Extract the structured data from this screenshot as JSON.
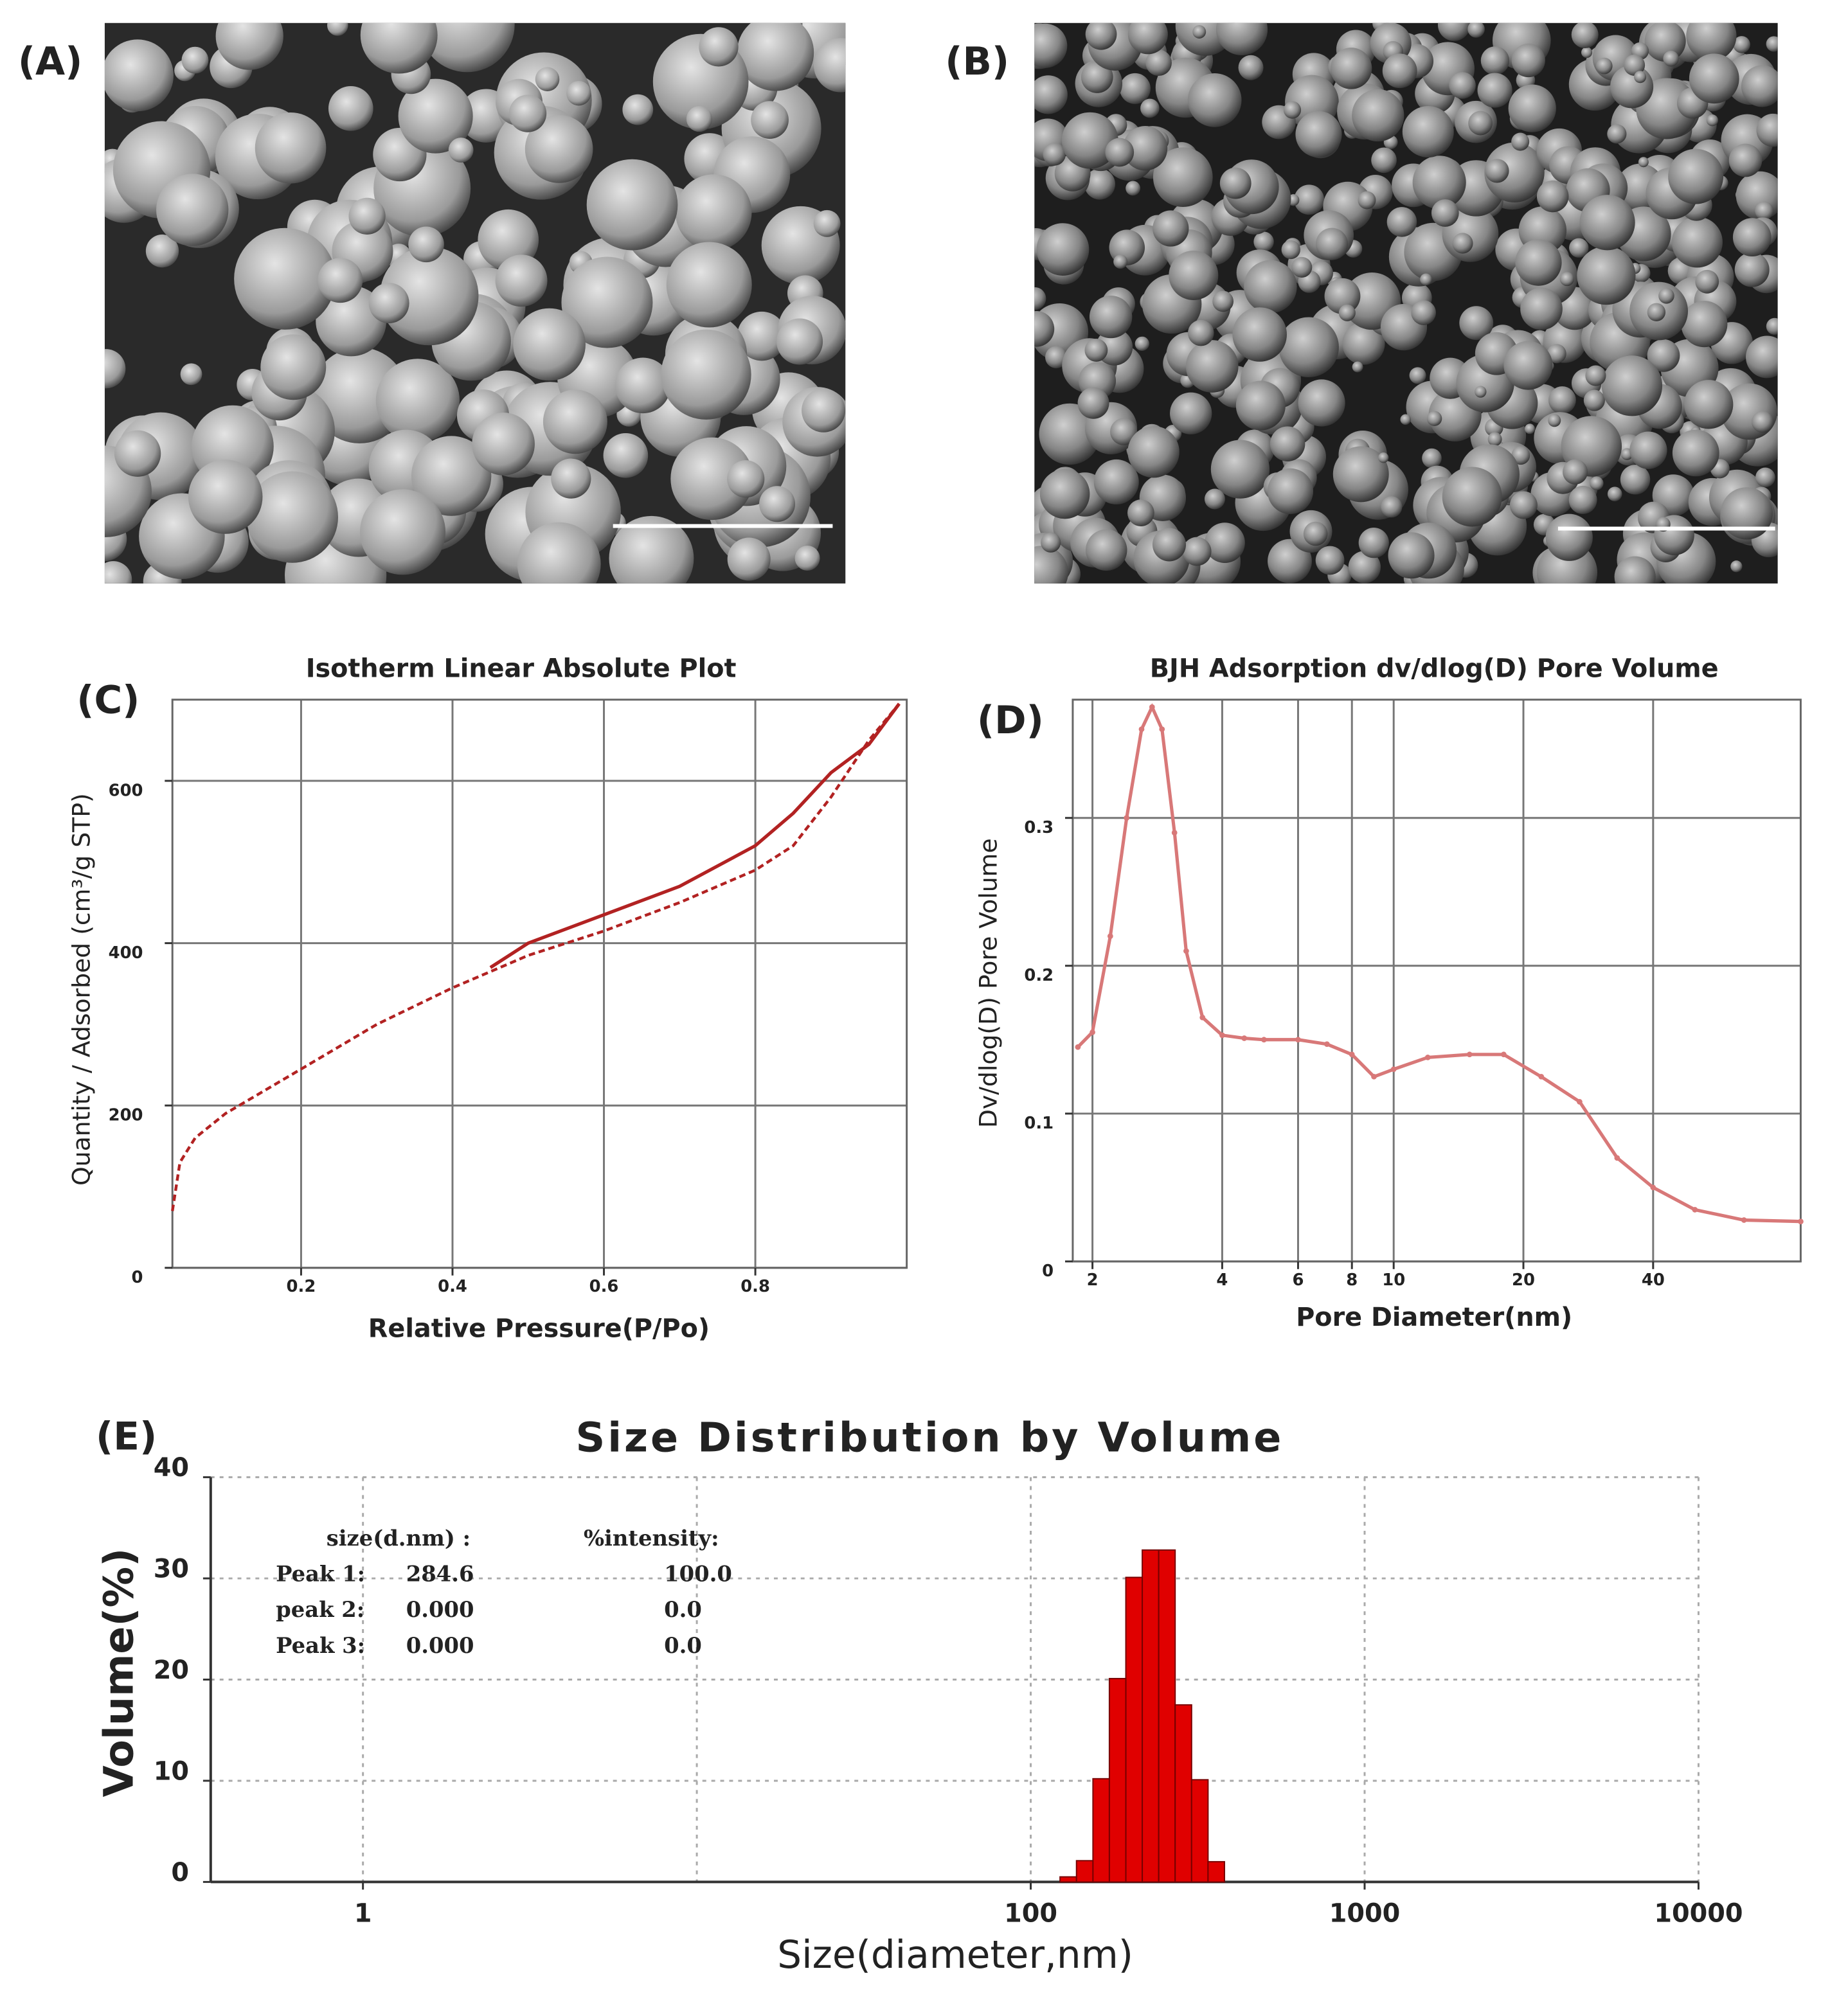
{
  "images": [
    {
      "label": "(A)"
    },
    {
      "label": "(B)"
    }
  ],
  "chart_data": [
    {
      "type": "line",
      "panel_label": "(C)",
      "title": "Isotherm Linear Absolute Plot",
      "xlabel": "Relative Pressure(P/Po)",
      "ylabel": "Quantity / Adsorbed (cm³/g STP)",
      "xlim": [
        0.03,
        1.0
      ],
      "xticks": [
        0.2,
        0.4,
        0.6,
        0.8
      ],
      "ylim": [
        0,
        700
      ],
      "yticks": [
        0,
        200,
        400,
        600
      ],
      "grid": true,
      "grid_style": "solid",
      "frame": true,
      "series": [
        {
          "color": "#b22222",
          "line_style": "dashed",
          "x": [
            0.03,
            0.04,
            0.06,
            0.1,
            0.2,
            0.3,
            0.4,
            0.45,
            0.5,
            0.6,
            0.7,
            0.8,
            0.85,
            0.9,
            0.95,
            0.99
          ],
          "values": [
            70,
            130,
            160,
            190,
            245,
            300,
            345,
            365,
            385,
            415,
            450,
            490,
            520,
            580,
            650,
            695
          ]
        },
        {
          "color": "#b22222",
          "line_style": "solid",
          "x": [
            0.45,
            0.5,
            0.6,
            0.7,
            0.8,
            0.85,
            0.9,
            0.95,
            0.99
          ],
          "values": [
            370,
            400,
            435,
            470,
            520,
            560,
            610,
            645,
            695
          ]
        }
      ]
    },
    {
      "type": "line",
      "panel_label": "(D)",
      "title": "BJH Adsorption dv/dlog(D) Pore Volume",
      "xlabel": "Pore Diameter(nm)",
      "ylabel": "Dv/dlog(D) Pore Volume",
      "xscale": "log",
      "xlim": [
        1.8,
        88
      ],
      "xticks": [
        2,
        4,
        6,
        8,
        10,
        20,
        40
      ],
      "ylim": [
        0,
        0.38
      ],
      "yticks": [
        0,
        0.1,
        0.2,
        0.3
      ],
      "grid": true,
      "grid_style": "solid",
      "frame": true,
      "series": [
        {
          "color": "#d87878",
          "line_style": "solid",
          "markers": true,
          "x": [
            1.85,
            2,
            2.2,
            2.4,
            2.6,
            2.75,
            2.9,
            3.1,
            3.3,
            3.6,
            4,
            4.5,
            5,
            6,
            7,
            8,
            9,
            10,
            12,
            15,
            18,
            22,
            27,
            33,
            40,
            50,
            65,
            88
          ],
          "values": [
            0.145,
            0.155,
            0.22,
            0.3,
            0.36,
            0.375,
            0.36,
            0.29,
            0.21,
            0.165,
            0.153,
            0.151,
            0.15,
            0.15,
            0.147,
            0.14,
            0.125,
            0.13,
            0.138,
            0.14,
            0.14,
            0.125,
            0.108,
            0.07,
            0.05,
            0.035,
            0.028,
            0.027
          ]
        }
      ]
    },
    {
      "type": "histogram",
      "panel_label": "(E)",
      "title": "Size Distribution by Volume",
      "xlabel": "Size(diameter,nm)",
      "ylabel": "Volume(%)",
      "xscale": "log",
      "xlim": [
        0.35,
        10000
      ],
      "xticks": [
        1,
        100,
        1000,
        10000
      ],
      "xgrid": [
        1,
        10,
        100,
        1000,
        10000
      ],
      "ylim": [
        0,
        40
      ],
      "yticks": [
        0,
        10,
        20,
        30,
        40
      ],
      "grid": true,
      "grid_style": "dotted",
      "frame": false,
      "color": "#e00000",
      "bins": [
        122.4,
        137.1,
        153.6,
        172.0,
        192.7,
        215.8,
        241.7,
        270.7,
        303.2,
        339.6,
        380.4
      ],
      "counts": [
        0.5,
        2.1,
        10.2,
        20.1,
        30.1,
        32.8,
        32.8,
        17.5,
        10.1,
        2.0
      ],
      "peak_table": {
        "headers": [
          "size(d.nm) :",
          "%intensity:"
        ],
        "rows": [
          [
            "Peak 1:",
            "284.6",
            "100.0"
          ],
          [
            "peak 2:",
            "0.000",
            "0.0"
          ],
          [
            "Peak 3:",
            "0.000",
            "0.0"
          ]
        ]
      }
    }
  ]
}
